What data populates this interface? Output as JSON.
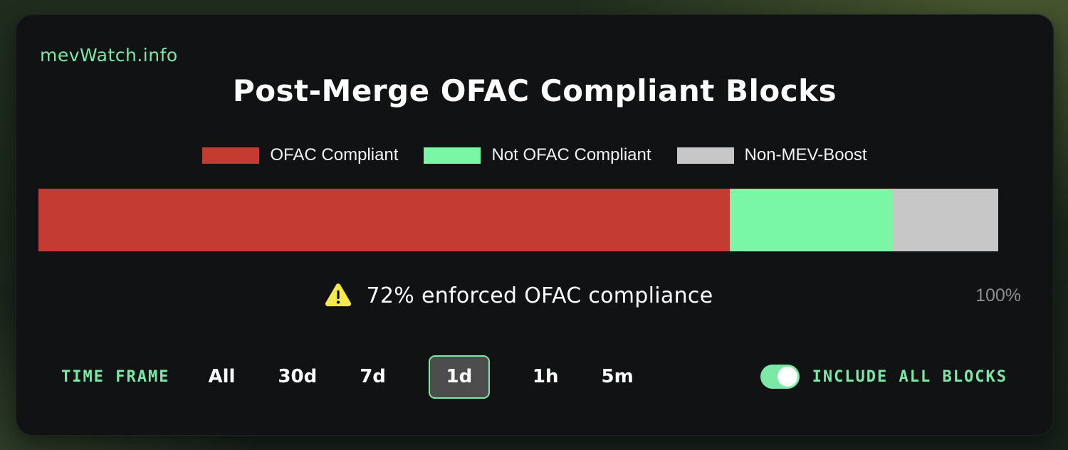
{
  "header": {
    "brand": "mevWatch.info",
    "title": "Post-Merge OFAC Compliant Blocks"
  },
  "chart_data": {
    "type": "stacked-bar",
    "title": "Post-Merge OFAC Compliant Blocks",
    "axis_range": [
      0,
      100
    ],
    "axis_max_label": "100%",
    "legend_position": "top",
    "segments": [
      {
        "label": "OFAC Compliant",
        "value_pct": 72,
        "color": "#c43b32"
      },
      {
        "label": "Not OFAC Compliant",
        "value_pct": 17,
        "color": "#79f7a7"
      },
      {
        "label": "Non-MEV-Boost",
        "value_pct": 11,
        "color": "#c7c7c7"
      }
    ]
  },
  "caption": {
    "icon": "warning-triangle",
    "text": "72% enforced OFAC compliance"
  },
  "timeframe": {
    "label": "TIME FRAME",
    "options": [
      "All",
      "30d",
      "7d",
      "1d",
      "1h",
      "5m"
    ],
    "selected": "1d"
  },
  "toggle": {
    "label": "INCLUDE ALL BLOCKS",
    "state": "on"
  },
  "colors": {
    "accent_green": "#7be8a6",
    "compliant_red": "#c43b32",
    "not_compliant_green": "#79f7a7",
    "non_mev_boost_gray": "#c7c7c7",
    "warning_yellow": "#f5e94e",
    "selected_button_bg": "#4d4d4d",
    "muted_text": "#8e8e8e",
    "card_bg": "#111214"
  }
}
